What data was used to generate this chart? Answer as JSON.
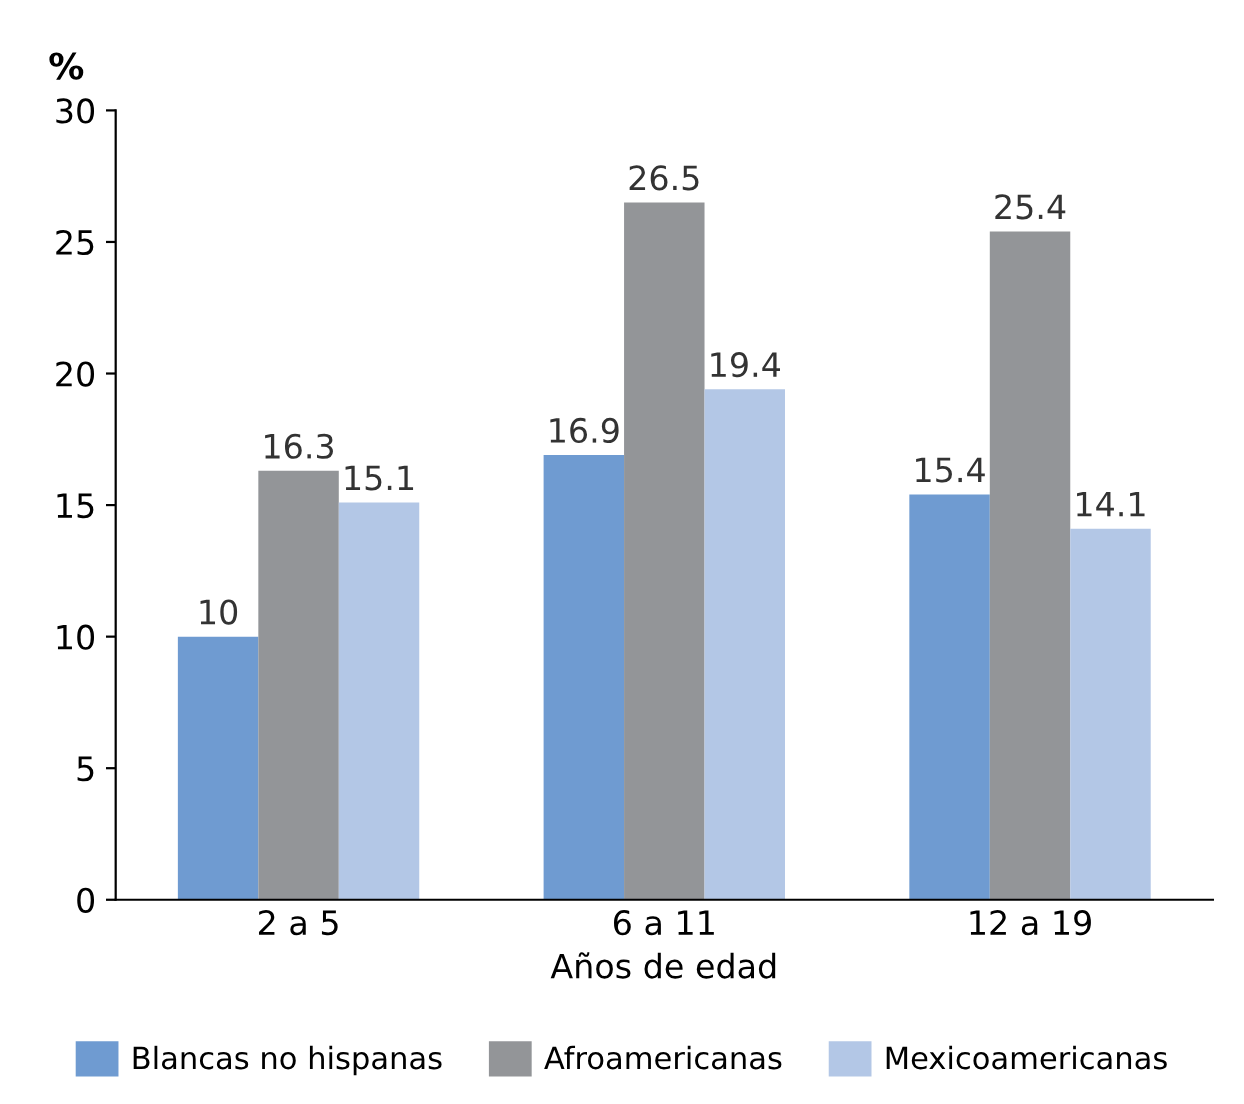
{
  "chart_data": {
    "type": "bar",
    "ylabel": "%",
    "xlabel": "Años de edad",
    "categories": [
      "2 a 5",
      "6 a 11",
      "12 a 19"
    ],
    "series": [
      {
        "name": "Blancas no hispanas",
        "color": "#6f9bd1",
        "values": [
          10,
          16.9,
          15.4
        ]
      },
      {
        "name": "Afroamericanas",
        "color": "#939598",
        "values": [
          16.3,
          26.5,
          25.4
        ]
      },
      {
        "name": "Mexicoamericanas",
        "color": "#b3c7e6",
        "values": [
          15.1,
          19.4,
          14.1
        ]
      }
    ],
    "ylim": [
      0,
      30
    ],
    "yticks": [
      0,
      5,
      10,
      15,
      20,
      25,
      30
    ],
    "data_labels": true,
    "grid": false,
    "legend": "bottom"
  }
}
